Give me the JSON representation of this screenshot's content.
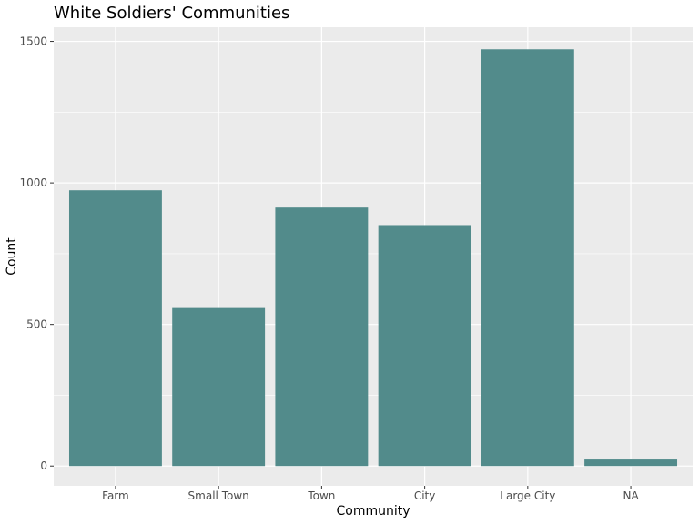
{
  "chart_data": {
    "type": "bar",
    "title": "White Soldiers' Communities",
    "xlabel": "Community",
    "ylabel": "Count",
    "categories": [
      "Farm",
      "Small Town",
      "Town",
      "City",
      "Large City",
      "NA"
    ],
    "values": [
      974,
      558,
      913,
      851,
      1472,
      23
    ],
    "ylim": [
      -70,
      1550
    ],
    "yticks": [
      0,
      500,
      1000,
      1500
    ],
    "grid": true,
    "legend": "none",
    "bar_color": "#528b8b",
    "panel_background": "#ebebeb",
    "gridline_color": "#ffffff"
  }
}
